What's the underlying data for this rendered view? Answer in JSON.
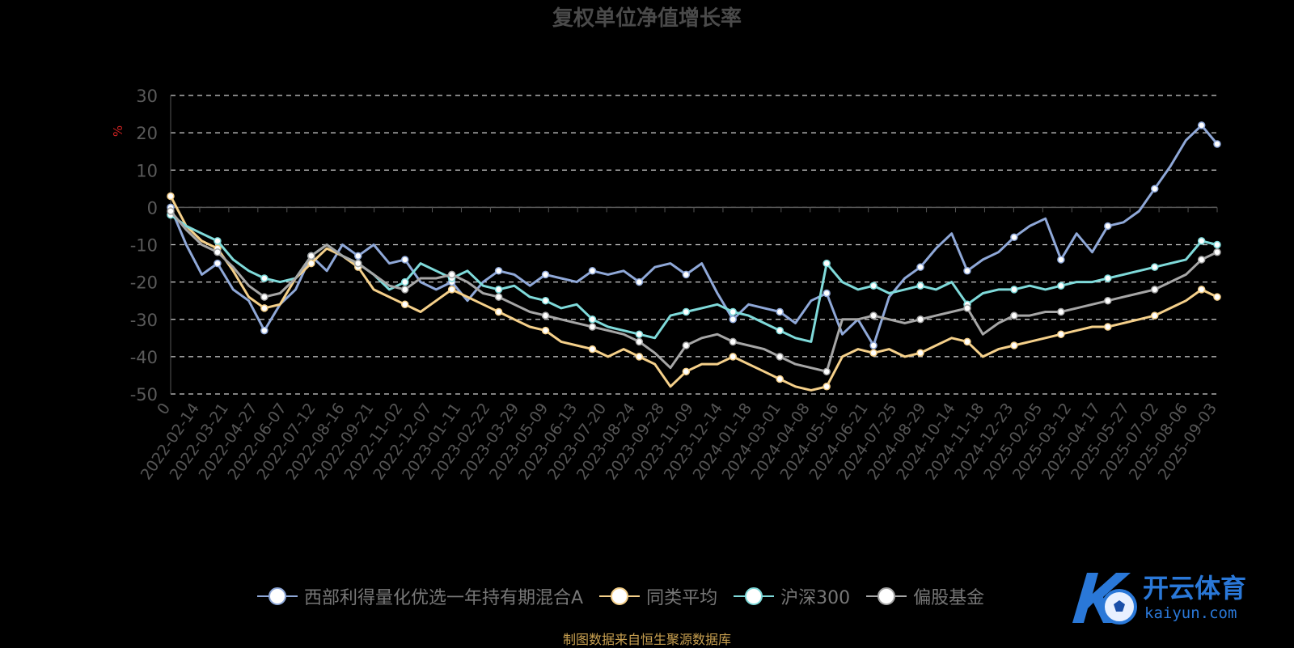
{
  "chart_data": {
    "type": "line",
    "title": "复权单位净值增长率",
    "ylabel": "%",
    "ylim": [
      -50,
      30
    ],
    "yticks": [
      30,
      20,
      10,
      0,
      -10,
      -20,
      -30,
      -40,
      -50
    ],
    "grid": true,
    "legend_position": "bottom",
    "x_tick_labels": [
      "0",
      "2022-02-14",
      "2022-03-21",
      "2022-04-27",
      "2022-06-07",
      "2022-07-12",
      "2022-08-16",
      "2022-09-21",
      "2022-11-02",
      "2022-12-07",
      "2023-01-11",
      "2023-02-22",
      "2023-03-29",
      "2023-05-09",
      "2023-06-13",
      "2023-07-20",
      "2023-08-24",
      "2023-09-28",
      "2023-11-09",
      "2023-12-14",
      "2024-01-18",
      "2024-03-01",
      "2024-04-08",
      "2024-05-16",
      "2024-06-21",
      "2024-07-25",
      "2024-08-29",
      "2024-10-14",
      "2024-11-18",
      "2024-12-23",
      "2025-02-05",
      "2025-03-12",
      "2025-04-17",
      "2025-05-27",
      "2025-07-02",
      "2025-08-06",
      "2025-09-03"
    ],
    "series": [
      {
        "name": "西部利得量化优选一年持有期混合A",
        "color": "#8fa8d8",
        "values": [
          0,
          -10,
          -18,
          -15,
          -22,
          -25,
          -33,
          -26,
          -22,
          -13,
          -17,
          -10,
          -13,
          -10,
          -15,
          -14,
          -20,
          -22,
          -20,
          -25,
          -20,
          -17,
          -18,
          -21,
          -18,
          -19,
          -20,
          -17,
          -18,
          -17,
          -20,
          -16,
          -15,
          -18,
          -15,
          -23,
          -30,
          -26,
          -27,
          -28,
          -31,
          -25,
          -23,
          -34,
          -30,
          -37,
          -24,
          -19,
          -16,
          -11,
          -7,
          -17,
          -14,
          -12,
          -8,
          -5,
          -3,
          -14,
          -7,
          -12,
          -5,
          -4,
          -1,
          5,
          11,
          18,
          22,
          17
        ]
      },
      {
        "name": "同类平均",
        "color": "#f5d08a",
        "values": [
          3,
          -5,
          -9,
          -11,
          -17,
          -24,
          -27,
          -26,
          -19,
          -15,
          -11,
          -13,
          -16,
          -22,
          -24,
          -26,
          -28,
          -25,
          -22,
          -24,
          -26,
          -28,
          -30,
          -32,
          -33,
          -36,
          -37,
          -38,
          -40,
          -38,
          -40,
          -42,
          -48,
          -44,
          -42,
          -42,
          -40,
          -42,
          -44,
          -46,
          -48,
          -49,
          -48,
          -40,
          -38,
          -39,
          -38,
          -40,
          -39,
          -37,
          -35,
          -36,
          -40,
          -38,
          -37,
          -36,
          -35,
          -34,
          -33,
          -32,
          -32,
          -31,
          -30,
          -29,
          -27,
          -25,
          -22,
          -24
        ]
      },
      {
        "name": "沪深300",
        "color": "#7fdada",
        "values": [
          -2,
          -5,
          -7,
          -9,
          -14,
          -17,
          -19,
          -20,
          -19,
          -13,
          -10,
          -13,
          -15,
          -18,
          -22,
          -20,
          -15,
          -17,
          -19,
          -17,
          -21,
          -22,
          -21,
          -24,
          -25,
          -27,
          -26,
          -30,
          -32,
          -33,
          -34,
          -35,
          -29,
          -28,
          -27,
          -26,
          -28,
          -29,
          -31,
          -33,
          -35,
          -36,
          -15,
          -20,
          -22,
          -21,
          -23,
          -22,
          -21,
          -22,
          -20,
          -26,
          -23,
          -22,
          -22,
          -21,
          -22,
          -21,
          -20,
          -20,
          -19,
          -18,
          -17,
          -16,
          -15,
          -14,
          -9,
          -10
        ]
      },
      {
        "name": "偏股基金",
        "color": "#a6a6a6",
        "values": [
          -1,
          -6,
          -10,
          -12,
          -16,
          -21,
          -24,
          -23,
          -19,
          -13,
          -10,
          -13,
          -15,
          -18,
          -21,
          -22,
          -19,
          -19,
          -18,
          -20,
          -23,
          -24,
          -26,
          -28,
          -29,
          -30,
          -31,
          -32,
          -33,
          -34,
          -36,
          -39,
          -43,
          -37,
          -35,
          -34,
          -36,
          -37,
          -38,
          -40,
          -42,
          -43,
          -44,
          -30,
          -30,
          -29,
          -30,
          -31,
          -30,
          -29,
          -28,
          -27,
          -34,
          -31,
          -29,
          -29,
          -28,
          -28,
          -27,
          -26,
          -25,
          -24,
          -23,
          -22,
          -20,
          -18,
          -14,
          -12
        ]
      }
    ]
  },
  "source_note": "制图数据来自恒生聚源数据库",
  "watermark": {
    "brand_text": "开云体育",
    "domain_text": "kaiyun.com"
  }
}
